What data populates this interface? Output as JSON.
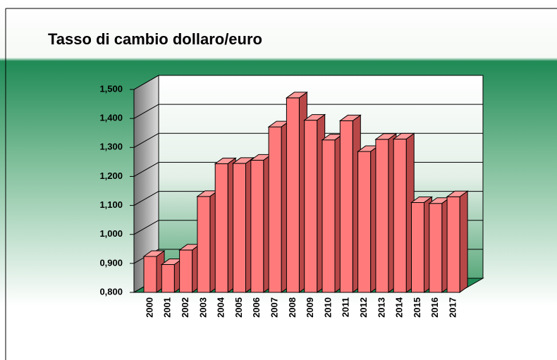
{
  "chart_data": {
    "type": "bar",
    "title": "Tasso di cambio dollaro/euro",
    "categories": [
      "2000",
      "2001",
      "2002",
      "2003",
      "2004",
      "2005",
      "2006",
      "2007",
      "2008",
      "2009",
      "2010",
      "2011",
      "2012",
      "2013",
      "2014",
      "2015",
      "2016",
      "2017"
    ],
    "values": [
      0.924,
      0.896,
      0.946,
      1.131,
      1.244,
      1.245,
      1.256,
      1.371,
      1.471,
      1.394,
      1.326,
      1.392,
      1.286,
      1.328,
      1.329,
      1.11,
      1.107,
      1.13
    ],
    "color": "#ff7b7b",
    "ylim": [
      0.8,
      1.5
    ],
    "yticks": [
      {
        "value": 0.8,
        "label": "0,800"
      },
      {
        "value": 0.9,
        "label": "0,900"
      },
      {
        "value": 1.0,
        "label": "1,000"
      },
      {
        "value": 1.1,
        "label": "1,100"
      },
      {
        "value": 1.2,
        "label": "1,200"
      },
      {
        "value": 1.3,
        "label": "1,300"
      },
      {
        "value": 1.4,
        "label": "1,400"
      },
      {
        "value": 1.5,
        "label": "1,500"
      }
    ],
    "grid": true
  }
}
